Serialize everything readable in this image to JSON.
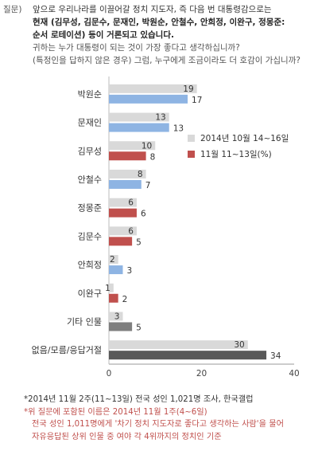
{
  "question": {
    "tag": "질문)",
    "lines": [
      "앞으로 우리나라를 이끌어갈 정치 지도자, 즉 다음 번 대통령감으로는",
      "현재 (김무성, 김문수, 문재인, 박원순, 안철수, 안희정, 이완구, 정몽준:",
      "순서 로테이션) 등이 거론되고 있습니다.",
      "귀하는 누가 대통령이 되는 것이 가장 좋다고 생각하십니까?",
      "(특정인을 답하지 않은 경우) 그럼, 누구에게 조금이라도 더 호감이 가십니까?"
    ]
  },
  "chart_data": {
    "type": "bar",
    "orientation": "horizontal",
    "categories": [
      "박원순",
      "문재인",
      "김무성",
      "안철수",
      "정몽준",
      "김문수",
      "안희정",
      "이완구",
      "기타 인물",
      "없음/모름/응답거절"
    ],
    "series": [
      {
        "name": "2014년 10월 14~16일",
        "values": [
          19,
          13,
          10,
          8,
          6,
          6,
          2,
          1,
          3,
          30
        ]
      },
      {
        "name": "11월 11~13일(%)",
        "values": [
          17,
          13,
          8,
          7,
          6,
          5,
          3,
          2,
          5,
          34
        ]
      }
    ],
    "xlim": [
      0,
      40
    ],
    "xticks": [
      "0",
      "20",
      "40"
    ],
    "legend_position": "right",
    "colors": {
      "prev": "#d9d9d9",
      "cur_default": "#8eb4e3",
      "cur_red": "#c0504d",
      "cur_gray": "#7f7f7f",
      "cur_dark": "#595959",
      "legend_cur": "#c0504d",
      "legend_prev": "#d9d9d9"
    },
    "current_colors": [
      "#8eb4e3",
      "#8eb4e3",
      "#c0504d",
      "#8eb4e3",
      "#c0504d",
      "#c0504d",
      "#8eb4e3",
      "#c0504d",
      "#7f7f7f",
      "#595959"
    ]
  },
  "footnotes": [
    "*2014년 11월 2주(11~13일) 전국 성인 1,021명 조사, 한국갤럽",
    "*위 질문에 포함된 이름은 2014년 11월 1주(4~6일)",
    "전국 성인 1,011명에게 '차기 정치 지도자로 좋다고 생각하는 사람'을 물어",
    "자유응답된 상위 인물 중 여야 각 4위까지의 정치인 기준"
  ]
}
